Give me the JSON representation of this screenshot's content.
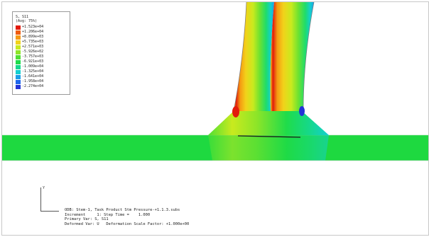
{
  "legend": {
    "variable": "S, S11",
    "options": "(Avg: 75%)",
    "entries": [
      {
        "value": "+1.523e+04",
        "color": "#e21b0c"
      },
      {
        "value": "+1.206e+04",
        "color": "#ef5b0e"
      },
      {
        "value": "+8.899e+03",
        "color": "#f59a12"
      },
      {
        "value": "+5.735e+03",
        "color": "#f2d21a"
      },
      {
        "value": "+2.571e+03",
        "color": "#c9ea1e"
      },
      {
        "value": "-5.926e+02",
        "color": "#8ee528"
      },
      {
        "value": "-3.757e+03",
        "color": "#4fe034"
      },
      {
        "value": "-6.921e+03",
        "color": "#1fdc4a"
      },
      {
        "value": "-1.009e+04",
        "color": "#15d88e"
      },
      {
        "value": "-1.325e+04",
        "color": "#14cfcf"
      },
      {
        "value": "-1.641e+04",
        "color": "#1a9ee8"
      },
      {
        "value": "-1.958e+04",
        "color": "#1c66ec"
      },
      {
        "value": "-2.274e+04",
        "color": "#2234d6"
      }
    ]
  },
  "triad": {
    "axis_label": "Y"
  },
  "info": {
    "line1": "ODB: Stem-1, Task Product Stm Pressure-+1.1.3.subs",
    "line2": "Increment     1: Step Time =    1.000",
    "line3": "Primary Var: S, S11",
    "line4": "Deformed Var: U   Deformation Scale Factor: +1.000e+00"
  },
  "colors": {
    "background": "#ffffff",
    "base_plate": "#1ed940",
    "stem_hot": "#f23a10",
    "stem_cold": "#1fd6d0"
  }
}
